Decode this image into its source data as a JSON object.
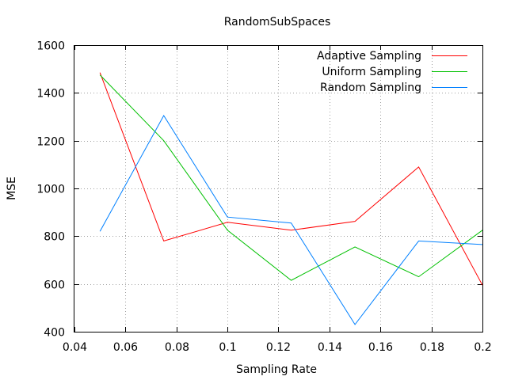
{
  "chart_data": {
    "type": "line",
    "title": "RandomSubSpaces",
    "xlabel": "Sampling Rate",
    "ylabel": "MSE",
    "xlim": [
      0.04,
      0.2
    ],
    "ylim": [
      400,
      1600
    ],
    "xticks": [
      "0.04",
      "0.06",
      "0.08",
      "0.1",
      "0.12",
      "0.14",
      "0.16",
      "0.18",
      "0.2"
    ],
    "yticks": [
      "400",
      "600",
      "800",
      "1000",
      "1200",
      "1400",
      "1600"
    ],
    "grid": true,
    "legend_position": "top-right",
    "x": [
      0.05,
      0.075,
      0.1,
      0.125,
      0.15,
      0.175,
      0.2
    ],
    "series": [
      {
        "name": "Adaptive Sampling",
        "color": "#ff0000",
        "values": [
          1485,
          780,
          858,
          825,
          862,
          1090,
          595
        ]
      },
      {
        "name": "Uniform Sampling",
        "color": "#00c000",
        "values": [
          1475,
          1200,
          825,
          615,
          755,
          630,
          825
        ]
      },
      {
        "name": "Random Sampling",
        "color": "#0080ff",
        "values": [
          820,
          1305,
          880,
          855,
          430,
          780,
          765
        ]
      }
    ]
  }
}
